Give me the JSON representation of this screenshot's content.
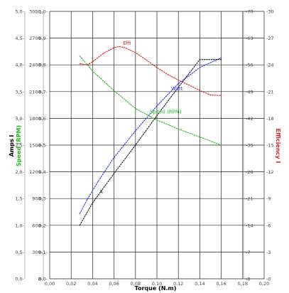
{
  "chart_data": {
    "type": "line",
    "title": "",
    "xlabel": "Torque (N.m)",
    "xlim": [
      0,
      0.2
    ],
    "x_ticks": [
      "0,00",
      "0,02",
      "0,04",
      "0,06",
      "0,08",
      "0,10",
      "0,12",
      "0,14",
      "0,16",
      "0,18",
      "0,20"
    ],
    "grid": true,
    "left_axes": [
      {
        "label": "Amps I",
        "color": "#000000",
        "lim": [
          0,
          5
        ],
        "ticks": [
          "0,0",
          "0,5",
          "1,0",
          "1,5",
          "2,0",
          "2,5",
          "3,0",
          "3,5",
          "4,0",
          "4,5",
          "5,0"
        ]
      },
      {
        "label": "Speed (RPM)",
        "color": "#22bb22",
        "lim": [
          0,
          3000
        ],
        "ticks": [
          "0",
          "300",
          "600",
          "900",
          "1200",
          "1500",
          "1800",
          "2100",
          "2400",
          "2700",
          "3000"
        ]
      },
      {
        "label": "",
        "color": "#000000",
        "lim": [
          0,
          1
        ],
        "ticks": [
          "0,0",
          "0,1",
          "0,2",
          "0,3",
          "0,4",
          "0,5",
          "0,6",
          "0,7",
          "0,8",
          "0,9",
          "1,0"
        ]
      }
    ],
    "right_axes": [
      {
        "label": "Efficiency I",
        "color": "#dd2222",
        "lim": [
          0,
          70
        ],
        "ticks": [
          "0",
          "7",
          "14",
          "21",
          "28",
          "35",
          "42",
          "49",
          "56",
          "63",
          "70"
        ]
      },
      {
        "label": "",
        "color": "#000000",
        "lim": [
          0,
          30
        ],
        "ticks": [
          "0",
          "3",
          "6",
          "9",
          "12",
          "15",
          "18",
          "21",
          "24",
          "27",
          "30"
        ]
      }
    ],
    "series": [
      {
        "name": "Speed (RPM)",
        "color": "#22bb22",
        "axis": "Speed (RPM)",
        "x": [
          0.028,
          0.04,
          0.06,
          0.08,
          0.1,
          0.12,
          0.14,
          0.16
        ],
        "y": [
          2500,
          2330,
          2110,
          1910,
          1780,
          1680,
          1590,
          1500
        ]
      },
      {
        "name": "Effi",
        "color": "#dd2222",
        "axis": "Efficiency I",
        "x": [
          0.028,
          0.035,
          0.04,
          0.05,
          0.06,
          0.065,
          0.07,
          0.08,
          0.09,
          0.1,
          0.11,
          0.12,
          0.13,
          0.14,
          0.15,
          0.16
        ],
        "y": [
          56.3,
          56.0,
          56.8,
          59.0,
          60.5,
          60.8,
          60.5,
          59.2,
          57.3,
          55.3,
          53.5,
          52.0,
          50.7,
          49.3,
          48.1,
          48.0
        ]
      },
      {
        "name": "Watt",
        "color": "#3333ee",
        "axis": "right-secondary",
        "x": [
          0.028,
          0.035,
          0.045,
          0.06,
          0.08,
          0.1,
          0.12,
          0.14,
          0.16
        ],
        "y": [
          7.3,
          8.9,
          10.9,
          13.6,
          16.6,
          19.4,
          21.9,
          23.7,
          24.8
        ]
      },
      {
        "name": "A",
        "color": "#111111",
        "axis": "Amps I",
        "x": [
          0.028,
          0.04,
          0.06,
          0.08,
          0.1,
          0.12,
          0.14,
          0.16
        ],
        "y": [
          1.0,
          1.42,
          1.97,
          2.5,
          3.05,
          3.58,
          4.1,
          4.1
        ]
      }
    ],
    "annotations": [
      {
        "text": "Effi",
        "series": "Effi",
        "x": 0.067
      },
      {
        "text": "Watt",
        "series": "Watt",
        "x": 0.112
      },
      {
        "text": "Speed (RPM)",
        "series": "Speed (RPM)",
        "x": 0.092
      },
      {
        "text": "A",
        "series": "A",
        "x": 0.045
      }
    ]
  }
}
